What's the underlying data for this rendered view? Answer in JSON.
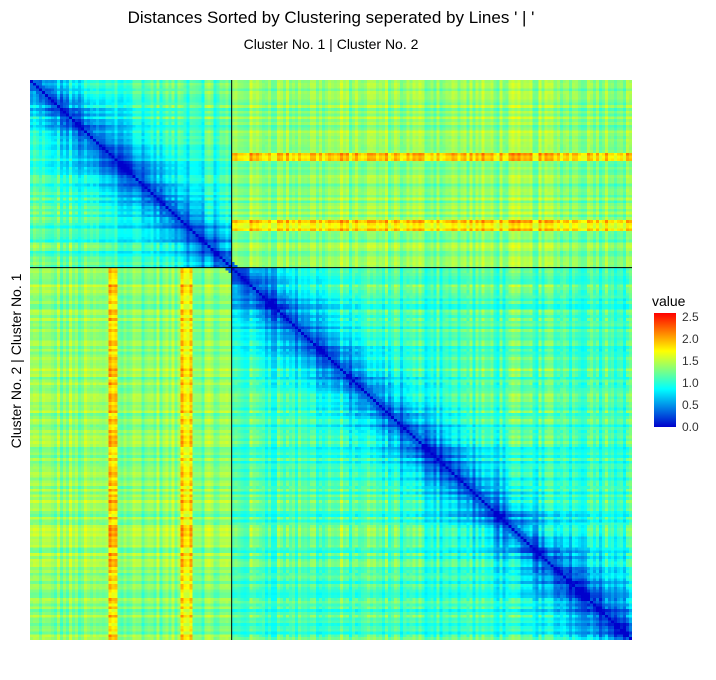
{
  "chart_data": {
    "type": "heatmap",
    "title": "Distances Sorted by Clustering seperated by Lines ' | '",
    "subtitle": "Cluster No. 1 | Cluster No. 2",
    "xlabel": "",
    "ylabel": "Cluster No. 2 | Cluster No. 1",
    "legend": {
      "title": "value",
      "placement": "right",
      "ticks": [
        "0.0",
        "0.5",
        "1.0",
        "1.5",
        "2.0",
        "2.5"
      ],
      "range": [
        0,
        2.6
      ],
      "colors": [
        "#0000cc",
        "#00ffff",
        "#ffff00",
        "#ff0000"
      ]
    },
    "n_items": 200,
    "clusters": [
      {
        "name": "Cluster No. 1",
        "size": 67
      },
      {
        "name": "Cluster No. 2",
        "size": 133
      }
    ],
    "grid": false,
    "diagonal_value": 0.0,
    "within_cluster_typical_value": 0.7,
    "between_cluster_typical_value": 1.3,
    "max_value": 2.6,
    "high_distance_rows": [
      26,
      27,
      50,
      51,
      52
    ],
    "high_distance_cols": [
      27,
      28,
      51,
      52,
      53
    ]
  }
}
